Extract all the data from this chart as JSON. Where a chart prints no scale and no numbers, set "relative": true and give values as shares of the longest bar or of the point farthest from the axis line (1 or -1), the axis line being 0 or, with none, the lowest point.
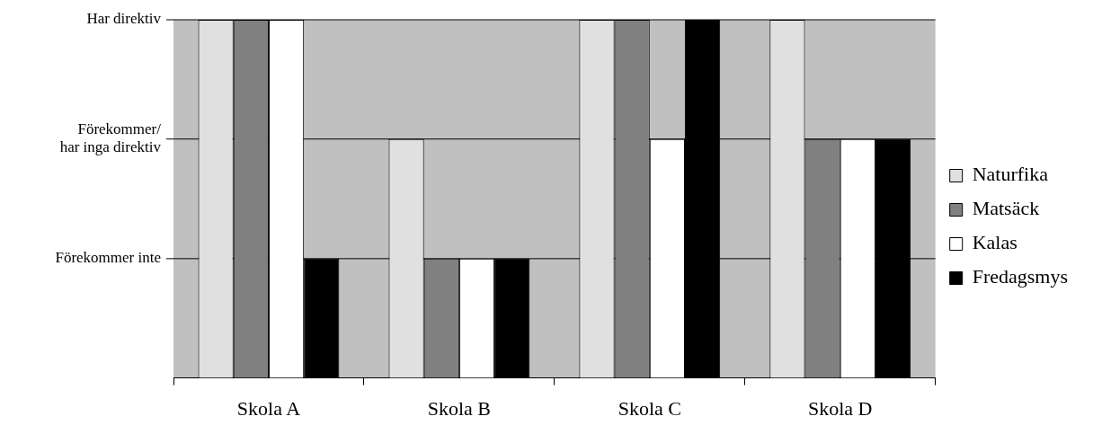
{
  "chart_data": {
    "type": "bar",
    "categories": [
      "Skola A",
      "Skola B",
      "Skola C",
      "Skola D"
    ],
    "relative": true,
    "series": [
      {
        "name": "Naturfika",
        "color": "#e0e0e0",
        "values": [
          1,
          0.667,
          1,
          1
        ]
      },
      {
        "name": "Matsäck",
        "color": "#808080",
        "values": [
          1,
          0.333,
          1,
          0.667
        ]
      },
      {
        "name": "Kalas",
        "color": "#ffffff",
        "values": [
          1,
          0.333,
          0.667,
          0.667
        ]
      },
      {
        "name": "Fredagsmys",
        "color": "#000000",
        "values": [
          0.333,
          0.333,
          1,
          0.667
        ]
      }
    ],
    "ref_lines": [
      {
        "axis": "y",
        "value": 0.333,
        "label": "Förekommer inte"
      },
      {
        "axis": "y",
        "value": 0.667,
        "label": "Förekommer/\nhar inga direktiv"
      },
      {
        "axis": "y",
        "value": 1,
        "label": "Har direktiv"
      }
    ],
    "legend": "right"
  }
}
